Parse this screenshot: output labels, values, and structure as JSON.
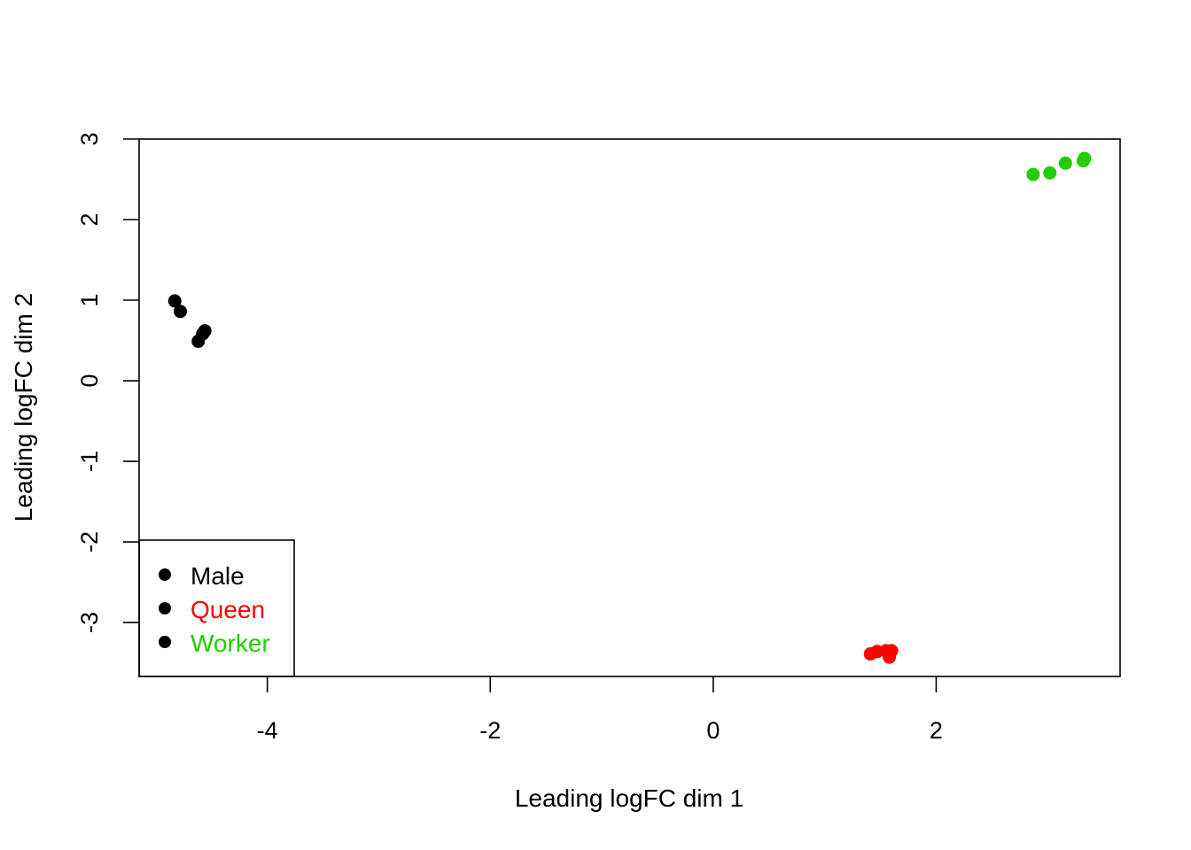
{
  "chart_data": {
    "type": "scatter",
    "title": "",
    "xlabel": "Leading logFC dim 1",
    "ylabel": "Leading logFC dim 2",
    "xlim": [
      -5.15,
      3.65
    ],
    "ylim": [
      -3.67,
      3.0
    ],
    "xticks": [
      "-4",
      "-2",
      "0",
      "2"
    ],
    "yticks": [
      "-3",
      "-2",
      "-1",
      "0",
      "1",
      "2",
      "3"
    ],
    "grid": false,
    "legend": {
      "position": "bottom-left"
    },
    "series": [
      {
        "name": "Male",
        "color": "#000000",
        "points": [
          {
            "x": -4.83,
            "y": 0.99
          },
          {
            "x": -4.78,
            "y": 0.86
          },
          {
            "x": -4.62,
            "y": 0.49
          },
          {
            "x": -4.58,
            "y": 0.58
          },
          {
            "x": -4.56,
            "y": 0.62
          }
        ]
      },
      {
        "name": "Queen",
        "color": "#ff0000",
        "points": [
          {
            "x": 1.41,
            "y": -3.39
          },
          {
            "x": 1.47,
            "y": -3.36
          },
          {
            "x": 1.55,
            "y": -3.35
          },
          {
            "x": 1.58,
            "y": -3.43
          },
          {
            "x": 1.6,
            "y": -3.35
          }
        ]
      },
      {
        "name": "Worker",
        "color": "#22cc00",
        "points": [
          {
            "x": 2.87,
            "y": 2.56
          },
          {
            "x": 3.02,
            "y": 2.58
          },
          {
            "x": 3.16,
            "y": 2.7
          },
          {
            "x": 3.32,
            "y": 2.73
          },
          {
            "x": 3.33,
            "y": 2.76
          }
        ]
      }
    ]
  }
}
